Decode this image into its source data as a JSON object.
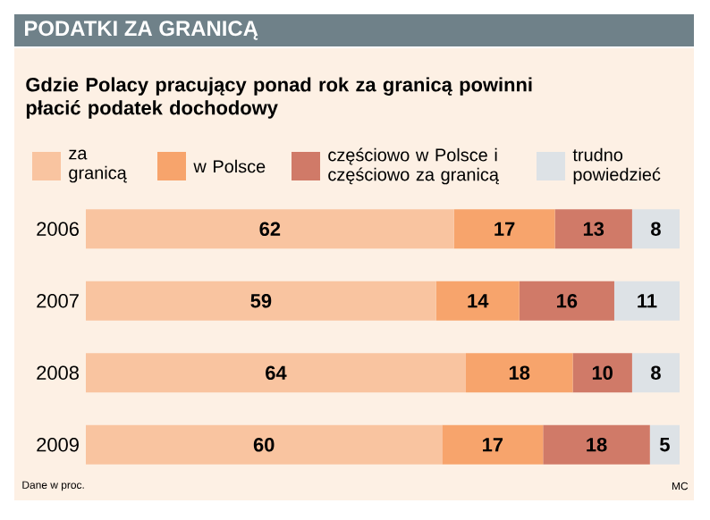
{
  "chart_data": {
    "type": "bar",
    "orientation": "horizontal",
    "stacked": true,
    "data_labels": true,
    "legend": "top",
    "title": "PODATKI ZA GRANICĄ",
    "subtitle": "Gdzie Polacy pracujący ponad rok za granicą powinni płacić podatek dochodowy",
    "categories": [
      "2006",
      "2007",
      "2008",
      "2009"
    ],
    "tick_labels": "y",
    "series": [
      {
        "name": "za granicą",
        "color": "#f9c4a0",
        "values": [
          62,
          59,
          64,
          60
        ]
      },
      {
        "name": "w Polsce",
        "color": "#f7a46c",
        "values": [
          17,
          14,
          18,
          17
        ]
      },
      {
        "name": "częściowo w Polsce i częściowo za granicą",
        "color": "#d07a68",
        "values": [
          13,
          16,
          10,
          18
        ]
      },
      {
        "name": "trudno powiedzieć",
        "color": "#dde2e6",
        "values": [
          8,
          11,
          8,
          5
        ]
      }
    ],
    "annotations": [
      "Dane w proc.",
      "MC"
    ]
  }
}
